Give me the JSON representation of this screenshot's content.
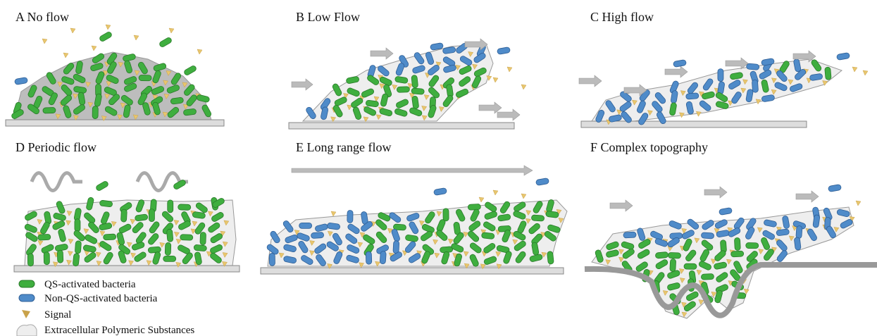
{
  "panels": [
    {
      "label": "A No flow"
    },
    {
      "label": "B Low Flow"
    },
    {
      "label": "C High flow"
    },
    {
      "label": "D Periodic flow"
    },
    {
      "label": "E Long range flow"
    },
    {
      "label": "F Complex topography"
    }
  ],
  "legend": [
    {
      "label": "QS-activated bacteria"
    },
    {
      "label": "Non-QS-activated bacteria"
    },
    {
      "label": "Signal"
    },
    {
      "label": "Extracellular Polymeric Substances"
    }
  ]
}
